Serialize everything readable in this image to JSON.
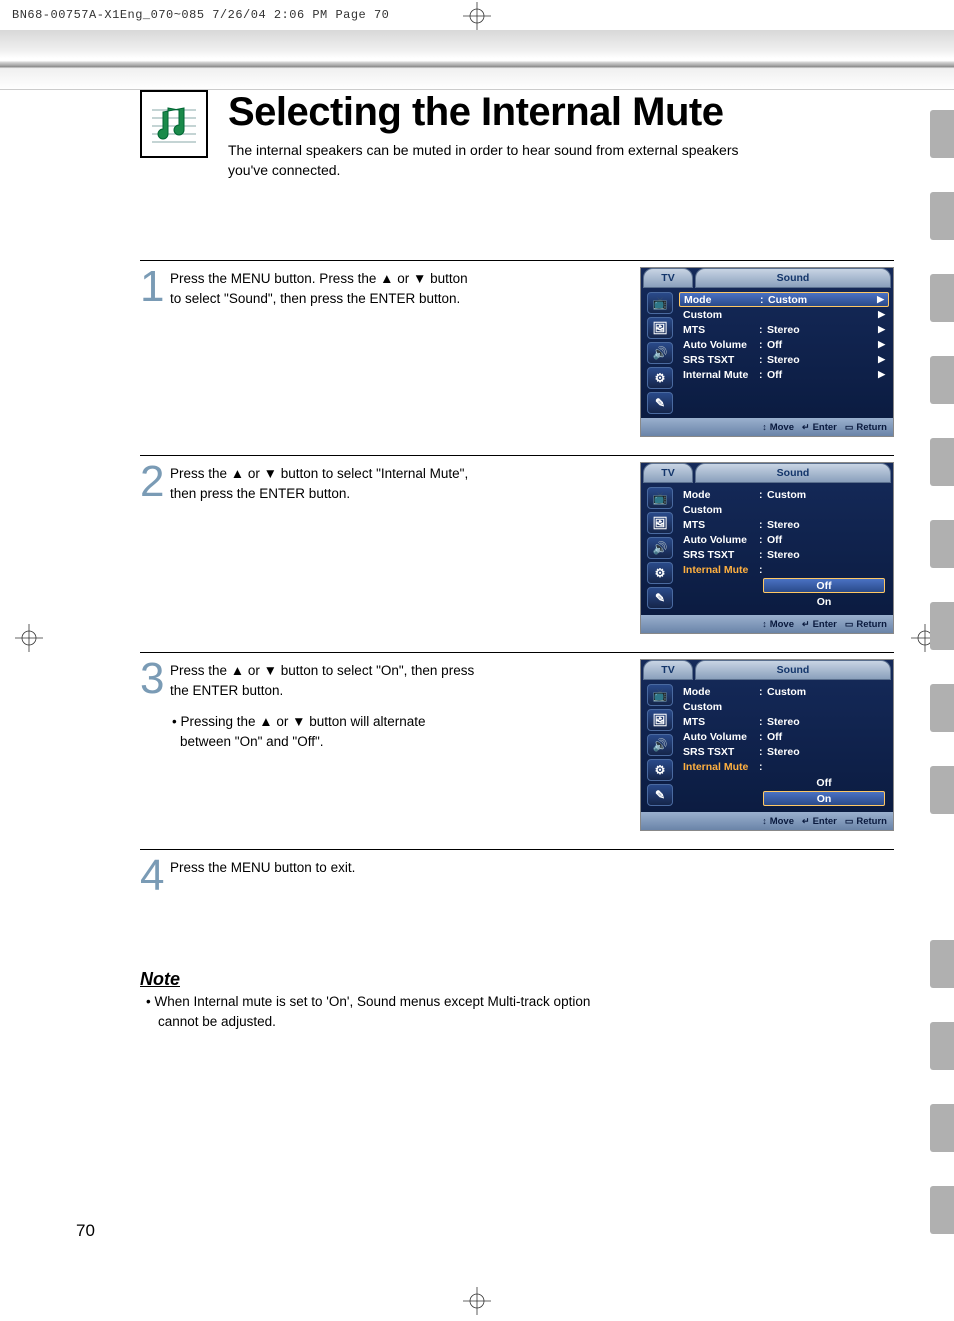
{
  "print_header": "BN68-00757A-X1Eng_070~085  7/26/04  2:06 PM  Page 70",
  "title": "Selecting the Internal Mute",
  "subtitle": "The internal speakers can be muted in order to hear sound from external speakers you've connected.",
  "steps": [
    {
      "num": "1",
      "text": "Press the MENU button. Press the ▲ or ▼ button to select \"Sound\", then press the ENTER button.",
      "panel": {
        "header_left": "TV",
        "header_right": "Sound",
        "rows": [
          {
            "label": "Mode",
            "value": "Custom",
            "arrow": "▶",
            "hl": true
          },
          {
            "label": "Custom",
            "value": "",
            "arrow": "▶"
          },
          {
            "label": "MTS",
            "value": "Stereo",
            "arrow": "▶"
          },
          {
            "label": "Auto Volume",
            "value": "Off",
            "arrow": "▶"
          },
          {
            "label": "SRS TSXT",
            "value": "Stereo",
            "arrow": "▶"
          },
          {
            "label": "Internal Mute",
            "value": "Off",
            "arrow": "▶"
          }
        ],
        "footer": {
          "move": "Move",
          "enter": "Enter",
          "return": "Return"
        }
      }
    },
    {
      "num": "2",
      "text": "Press the ▲ or ▼ button to select \"Internal Mute\", then press the ENTER button.",
      "panel": {
        "header_left": "TV",
        "header_right": "Sound",
        "rows": [
          {
            "label": "Mode",
            "value": "Custom"
          },
          {
            "label": "Custom",
            "value": ""
          },
          {
            "label": "MTS",
            "value": "Stereo"
          },
          {
            "label": "Auto Volume",
            "value": "Off"
          },
          {
            "label": "SRS TSXT",
            "value": "Stereo"
          },
          {
            "label": "Internal Mute",
            "value": "",
            "orange": true,
            "options": [
              {
                "t": "Off",
                "sel": true
              },
              {
                "t": "On",
                "sel": false
              }
            ]
          }
        ],
        "footer": {
          "move": "Move",
          "enter": "Enter",
          "return": "Return"
        }
      }
    },
    {
      "num": "3",
      "text": "Press the ▲ or ▼ button to select \"On\", then press the ENTER button.",
      "sub": "• Pressing the ▲ or ▼ button will alternate between \"On\" and \"Off\".",
      "panel": {
        "header_left": "TV",
        "header_right": "Sound",
        "rows": [
          {
            "label": "Mode",
            "value": "Custom"
          },
          {
            "label": "Custom",
            "value": ""
          },
          {
            "label": "MTS",
            "value": "Stereo"
          },
          {
            "label": "Auto Volume",
            "value": "Off"
          },
          {
            "label": "SRS TSXT",
            "value": "Stereo"
          },
          {
            "label": "Internal Mute",
            "value": "",
            "orange": true,
            "options": [
              {
                "t": "Off",
                "sel": false
              },
              {
                "t": "On",
                "sel": true
              }
            ]
          }
        ],
        "footer": {
          "move": "Move",
          "enter": "Enter",
          "return": "Return"
        }
      }
    },
    {
      "num": "4",
      "text": "Press the MENU button to exit."
    }
  ],
  "note_title": "Note",
  "note_body": "•  When Internal mute is set to 'On', Sound menus except Multi-track option cannot be adjusted.",
  "page_num": "70",
  "colors": {
    "step_num": "#7a9bb5",
    "tv_bg_top": "#152a5a",
    "tv_bg_bot": "#0a1a3e",
    "orange": "#ffb040",
    "hl_border": "#ffc864"
  }
}
